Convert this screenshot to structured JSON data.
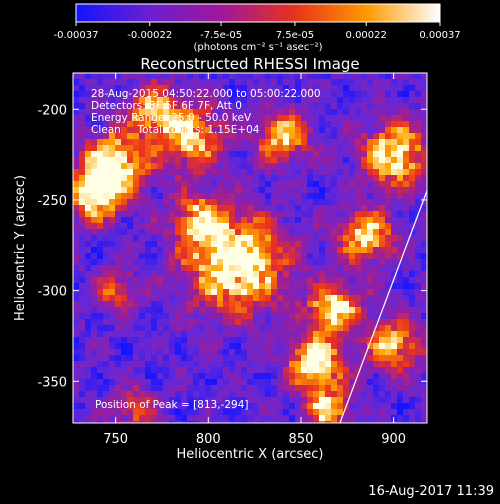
{
  "colorbar": {
    "tick_labels": [
      "-0.00037",
      "-0.00022",
      "-7.5e-05",
      "7.5e-05",
      "0.00022",
      "0.00037"
    ],
    "tick_values": [
      -0.00037,
      -0.00022,
      -7.5e-05,
      7.5e-05,
      0.00022,
      0.00037
    ],
    "range": [
      -0.00037,
      0.00037
    ],
    "unit_label": "(photons cm⁻² s⁻¹ asec⁻²)",
    "colors": [
      "#1414ff",
      "#6a1fd0",
      "#a0179a",
      "#e8321c",
      "#ff9a00",
      "#ffffff"
    ]
  },
  "chart_data": {
    "type": "heatmap",
    "title": "Reconstructed RHESSI Image",
    "xlabel": "Heliocentric X (arcsec)",
    "ylabel": "Heliocentric Y (arcsec)",
    "xlim": [
      727,
      918
    ],
    "ylim": [
      -373,
      -180
    ],
    "x_ticks": [
      750,
      800,
      850,
      900
    ],
    "y_ticks": [
      -200,
      -250,
      -300,
      -350
    ],
    "x_tick_labels": [
      "750",
      "800",
      "850",
      "900"
    ],
    "y_tick_labels": [
      "-200",
      "-250",
      "-300",
      "-350"
    ],
    "peak": [
      813,
      -294
    ],
    "limb_line": [
      [
        871,
        -373
      ],
      [
        918,
        -245
      ]
    ],
    "hot_regions": [
      {
        "x": 815,
        "y": -285,
        "intensity": 1.0,
        "spread": 18
      },
      {
        "x": 750,
        "y": -230,
        "intensity": 0.9,
        "spread": 12
      },
      {
        "x": 738,
        "y": -248,
        "intensity": 0.8,
        "spread": 10
      },
      {
        "x": 790,
        "y": -215,
        "intensity": 0.75,
        "spread": 12
      },
      {
        "x": 840,
        "y": -215,
        "intensity": 0.7,
        "spread": 10
      },
      {
        "x": 770,
        "y": -200,
        "intensity": 0.6,
        "spread": 10
      },
      {
        "x": 900,
        "y": -225,
        "intensity": 0.85,
        "spread": 12
      },
      {
        "x": 885,
        "y": -270,
        "intensity": 0.8,
        "spread": 10
      },
      {
        "x": 868,
        "y": -310,
        "intensity": 0.8,
        "spread": 10
      },
      {
        "x": 858,
        "y": -340,
        "intensity": 0.9,
        "spread": 10
      },
      {
        "x": 900,
        "y": -330,
        "intensity": 0.7,
        "spread": 10
      },
      {
        "x": 865,
        "y": -365,
        "intensity": 0.8,
        "spread": 8
      },
      {
        "x": 795,
        "y": -260,
        "intensity": 0.6,
        "spread": 10
      },
      {
        "x": 750,
        "y": -300,
        "intensity": 0.5,
        "spread": 8
      },
      {
        "x": 760,
        "y": -365,
        "intensity": 0.45,
        "spread": 8
      }
    ],
    "grid": false
  },
  "info": {
    "time_range": "28-Aug-2015 04:50:22.000 to 05:00:22.000",
    "detectors": "Detectors: 3F 5F 6F 7F, Att 0",
    "energy": "Energy Range: 25.0 - 50.0 keV",
    "method": "Clean     Total counts: 1.15E+04",
    "peak_label": "Position of Peak = [813,-294]"
  },
  "footer": {
    "timestamp": "16-Aug-2017 11:39"
  }
}
